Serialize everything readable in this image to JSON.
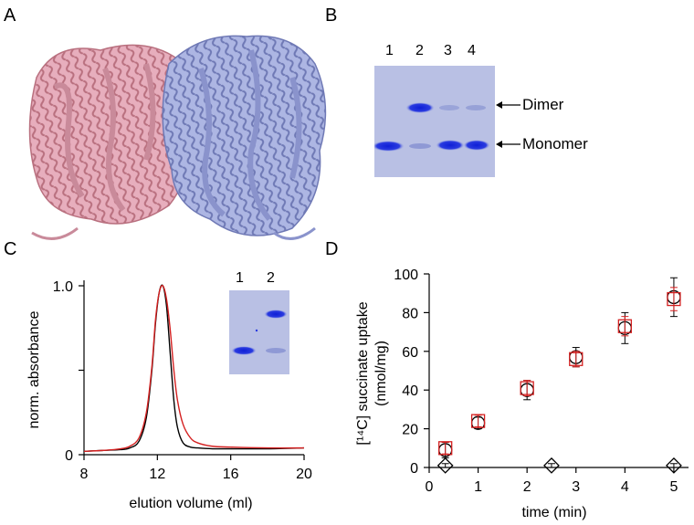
{
  "panels": {
    "a": {
      "letter": "A"
    },
    "b": {
      "letter": "B",
      "lanes": [
        "1",
        "2",
        "3",
        "4"
      ],
      "bands": {
        "dimer": "Dimer",
        "monomer": "Monomer"
      }
    },
    "c": {
      "letter": "C",
      "inset_lanes": [
        "1",
        "2"
      ]
    },
    "d": {
      "letter": "D"
    }
  },
  "colors": {
    "protein_left": "#e4a4b4",
    "protein_right": "#a7b0df",
    "gel_bg": "#b7bfe3",
    "gel_band": "#1f2fd9",
    "trace_black": "#000000",
    "trace_red": "#d42020"
  },
  "chart_data": [
    {
      "type": "line",
      "panel": "C",
      "xlabel": "elution volume (ml)",
      "ylabel": "norm. absorbance",
      "xlim": [
        8,
        20
      ],
      "ylim": [
        0,
        1.0
      ],
      "xticks": [
        "8",
        "12",
        "16",
        "20"
      ],
      "yticks": [
        "0",
        "1.0"
      ],
      "series": [
        {
          "color": "#000000",
          "x": [
            8,
            9,
            10,
            10.5,
            11,
            11.4,
            11.7,
            11.9,
            12.1,
            12.3,
            12.5,
            12.7,
            12.9,
            13.1,
            13.4,
            13.8,
            14.2,
            15,
            16,
            18,
            20
          ],
          "y": [
            0.02,
            0.025,
            0.03,
            0.04,
            0.08,
            0.22,
            0.5,
            0.78,
            0.96,
            1.0,
            0.88,
            0.6,
            0.32,
            0.16,
            0.07,
            0.045,
            0.04,
            0.035,
            0.035,
            0.035,
            0.04
          ]
        },
        {
          "color": "#d42020",
          "x": [
            8,
            9,
            10,
            10.5,
            11,
            11.4,
            11.7,
            11.9,
            12.1,
            12.3,
            12.5,
            12.7,
            12.9,
            13.1,
            13.4,
            13.8,
            14.2,
            15,
            16,
            18,
            20
          ],
          "y": [
            0.02,
            0.025,
            0.035,
            0.05,
            0.1,
            0.25,
            0.52,
            0.8,
            0.96,
            1.0,
            0.92,
            0.74,
            0.5,
            0.32,
            0.18,
            0.1,
            0.07,
            0.05,
            0.045,
            0.04,
            0.04
          ]
        }
      ]
    },
    {
      "type": "scatter",
      "panel": "D",
      "xlabel": "time (min)",
      "ylabel_line1": "[¹⁴C] succinate uptake",
      "ylabel_line2": "(nmol/mg)",
      "xlim": [
        0,
        5.3
      ],
      "ylim": [
        0,
        100
      ],
      "xticks": [
        "0",
        "1",
        "2",
        "3",
        "4",
        "5"
      ],
      "yticks": [
        "0",
        "20",
        "40",
        "60",
        "80",
        "100"
      ],
      "series": [
        {
          "marker": "circle",
          "color": "#000000",
          "points": [
            {
              "x": 0.33,
              "y": 9,
              "err": 4
            },
            {
              "x": 1,
              "y": 23,
              "err": 3
            },
            {
              "x": 2,
              "y": 40,
              "err": 5
            },
            {
              "x": 3,
              "y": 57,
              "err": 5
            },
            {
              "x": 4,
              "y": 72,
              "err": 8
            },
            {
              "x": 5,
              "y": 88,
              "err": 10
            }
          ]
        },
        {
          "marker": "square",
          "color": "#d42020",
          "points": [
            {
              "x": 0.33,
              "y": 10,
              "err": 3
            },
            {
              "x": 1,
              "y": 24,
              "err": 3
            },
            {
              "x": 2,
              "y": 41,
              "err": 4
            },
            {
              "x": 3,
              "y": 56,
              "err": 4
            },
            {
              "x": 4,
              "y": 73,
              "err": 5
            },
            {
              "x": 5,
              "y": 87,
              "err": 6
            }
          ]
        },
        {
          "marker": "diamond",
          "color": "#000000",
          "points": [
            {
              "x": 0.33,
              "y": 1,
              "err": 1
            },
            {
              "x": 2.5,
              "y": 1,
              "err": 1
            },
            {
              "x": 5,
              "y": 1,
              "err": 1
            }
          ]
        }
      ]
    }
  ]
}
